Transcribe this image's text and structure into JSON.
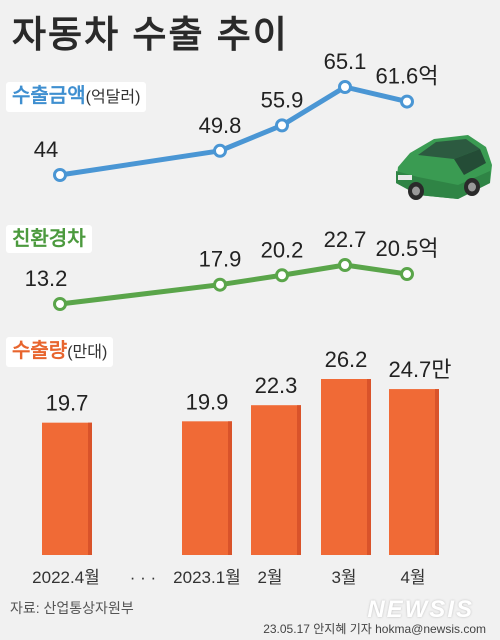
{
  "title": "자동차 수출 추이",
  "colors": {
    "amount": "#4a96d4",
    "eco": "#5aa54a",
    "volume": "#f06a36",
    "volume_shade": "#d9532a"
  },
  "legend": {
    "amount_label": "수출금액",
    "amount_unit": "(억달러)",
    "eco_label": "친환경차",
    "volume_label": "수출량",
    "volume_unit": "(만대)"
  },
  "chart_data": [
    {
      "type": "line",
      "name": "수출금액",
      "categories": [
        "2022.4월",
        "2023.1월",
        "2월",
        "3월",
        "4월"
      ],
      "values": [
        44,
        49.8,
        55.9,
        65.1,
        61.6
      ],
      "value_labels": [
        "44",
        "49.8",
        "55.9",
        "65.1",
        "61.6억"
      ]
    },
    {
      "type": "line",
      "name": "친환경차",
      "categories": [
        "2022.4월",
        "2023.1월",
        "2월",
        "3월",
        "4월"
      ],
      "values": [
        13.2,
        17.9,
        20.2,
        22.7,
        20.5
      ],
      "value_labels": [
        "13.2",
        "17.9",
        "20.2",
        "22.7",
        "20.5억"
      ]
    },
    {
      "type": "bar",
      "name": "수출량",
      "categories": [
        "2022.4월",
        "2023.1월",
        "2월",
        "3월",
        "4월"
      ],
      "values": [
        19.7,
        19.9,
        22.3,
        26.2,
        24.7
      ],
      "value_labels": [
        "19.7",
        "19.9",
        "22.3",
        "26.2",
        "24.7만"
      ]
    }
  ],
  "x_labels": [
    "2022.4월",
    "· · ·",
    "2023.1월",
    "2월",
    "3월",
    "4월"
  ],
  "source": "자료: 산업통상자원부",
  "credit": "23.05.17 안지혜 기자 hokma@newsis.com",
  "logo": "NEWSIS",
  "car_icon": "car-icon"
}
